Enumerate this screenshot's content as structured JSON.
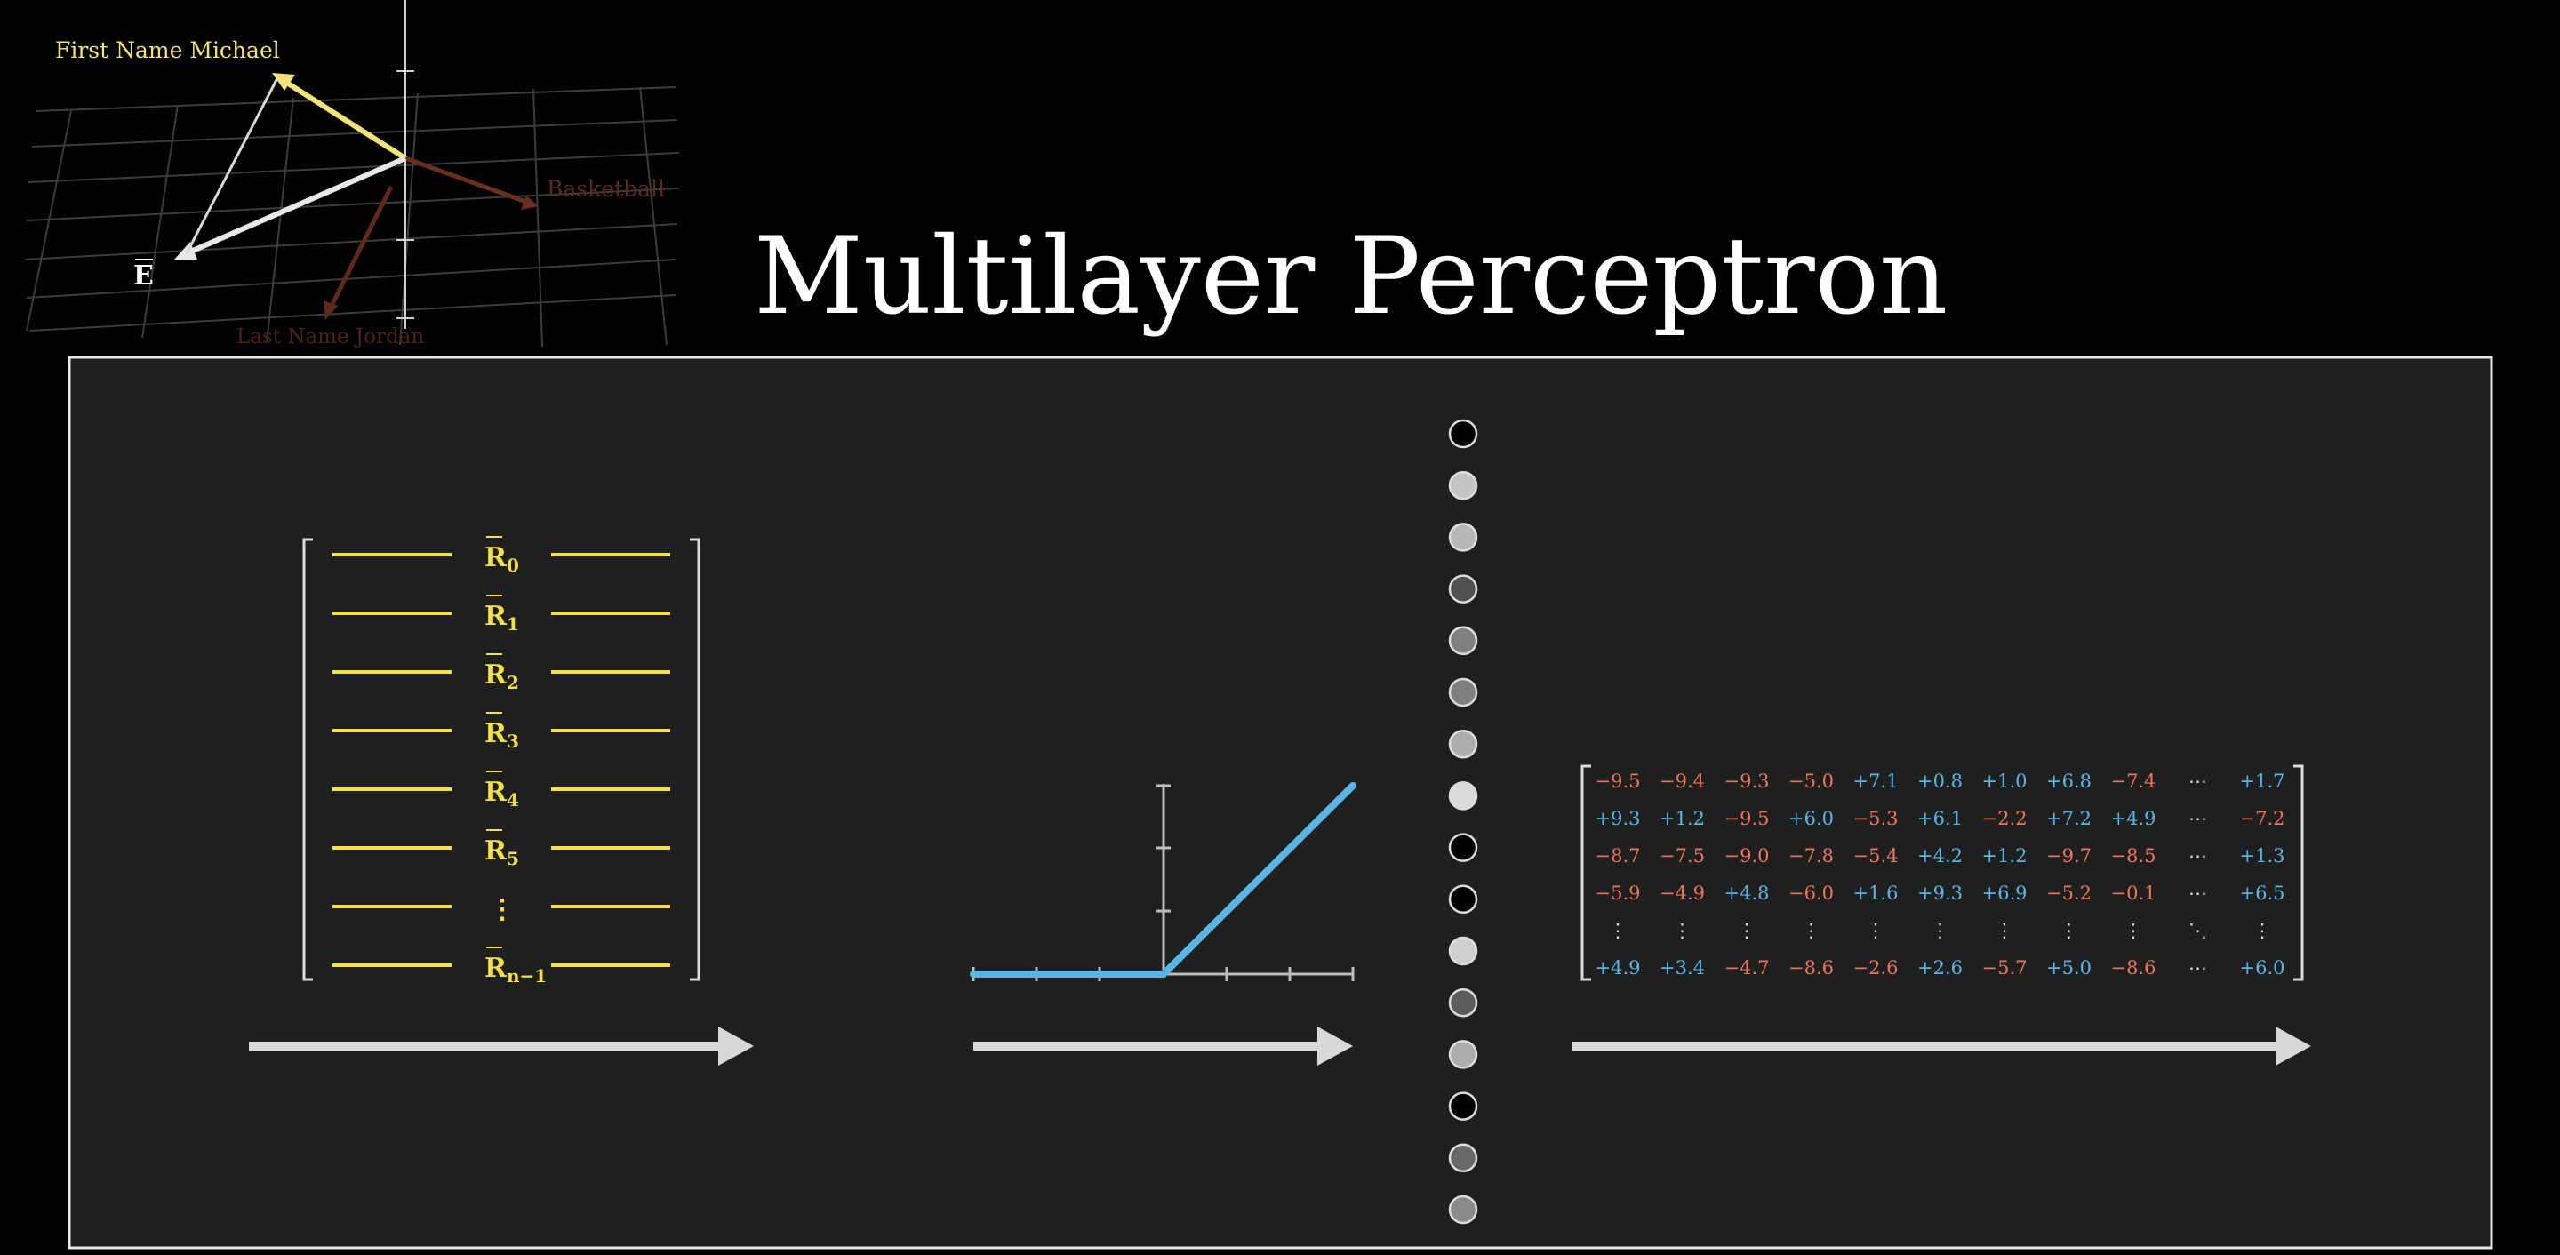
{
  "title": "Multilayer Perceptron",
  "vector_plot": {
    "labels": {
      "first_name": "First Name Michael",
      "basketball": "Basketball",
      "last_name": "Last Name Jordan",
      "embedding": "E"
    },
    "colors": {
      "first_name": "#f2e27a",
      "basketball": "#5a2a1c",
      "last_name": "#4a2418",
      "embedding": "#e8e8e8",
      "grid": "#3c3c3c"
    }
  },
  "row_matrix": {
    "rows": [
      {
        "base": "R",
        "sub": "0"
      },
      {
        "base": "R",
        "sub": "1"
      },
      {
        "base": "R",
        "sub": "2"
      },
      {
        "base": "R",
        "sub": "3"
      },
      {
        "base": "R",
        "sub": "4"
      },
      {
        "base": "R",
        "sub": "5"
      },
      {
        "base": "⋮",
        "sub": ""
      },
      {
        "base": "R",
        "sub": "n−1"
      }
    ],
    "color": "#f5e04a"
  },
  "relu": {
    "color": "#5ab4e4"
  },
  "neurons": {
    "fill_levels": [
      0.0,
      0.85,
      0.8,
      0.35,
      0.55,
      0.55,
      0.75,
      0.95,
      0.0,
      0.0,
      0.9,
      0.4,
      0.75,
      0.0,
      0.45,
      0.6
    ]
  },
  "weight_matrix": {
    "rows": [
      [
        "−9.5",
        "−9.4",
        "−9.3",
        "−5.0",
        "+7.1",
        "+0.8",
        "+1.0",
        "+6.8",
        "−7.4",
        "⋯",
        "+1.7"
      ],
      [
        "+9.3",
        "+1.2",
        "−9.5",
        "+6.0",
        "−5.3",
        "+6.1",
        "−2.2",
        "+7.2",
        "+4.9",
        "⋯",
        "−7.2"
      ],
      [
        "−8.7",
        "−7.5",
        "−9.0",
        "−7.8",
        "−5.4",
        "+4.2",
        "+1.2",
        "−9.7",
        "−8.5",
        "⋯",
        "+1.3"
      ],
      [
        "−5.9",
        "−4.9",
        "+4.8",
        "−6.0",
        "+1.6",
        "+9.3",
        "+6.9",
        "−5.2",
        "−0.1",
        "⋯",
        "+6.5"
      ],
      [
        "⋮",
        "⋮",
        "⋮",
        "⋮",
        "⋮",
        "⋮",
        "⋮",
        "⋮",
        "⋮",
        "⋱",
        "⋮"
      ],
      [
        "+4.9",
        "+3.4",
        "−4.7",
        "−8.6",
        "−2.6",
        "+2.6",
        "−5.7",
        "+5.0",
        "−8.6",
        "⋯",
        "+6.0"
      ]
    ],
    "colors": {
      "negative": "#f0735a",
      "positive": "#5ab4e4",
      "neutral": "#dddddd"
    }
  }
}
